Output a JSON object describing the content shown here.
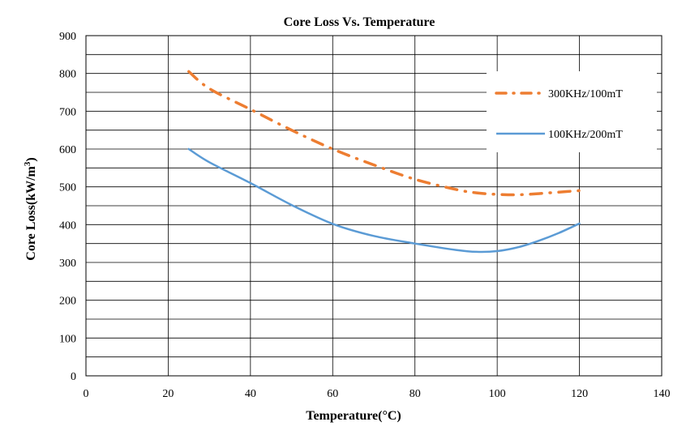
{
  "chart_data": {
    "type": "line",
    "title": "Core Loss Vs. Temperature",
    "xlabel": "Temperature(°C)",
    "ylabel": "Core Loss(kW/m",
    "ylabel_sup": "3",
    "ylabel_suffix": ")",
    "xlim": [
      0,
      140
    ],
    "ylim": [
      0,
      900
    ],
    "xticks": [
      0,
      20,
      40,
      60,
      80,
      100,
      120,
      140
    ],
    "yticks": [
      0,
      100,
      200,
      300,
      400,
      500,
      600,
      700,
      800,
      900
    ],
    "grid": true,
    "legend_position": "top-right",
    "series": [
      {
        "name": "300KHz/100mT",
        "color": "#ED7D31",
        "style": "dash-dot",
        "x": [
          25,
          30,
          40,
          50,
          60,
          70,
          80,
          90,
          95,
          100,
          105,
          110,
          115,
          120
        ],
        "y": [
          805,
          760,
          705,
          650,
          600,
          558,
          520,
          493,
          484,
          480,
          479,
          482,
          486,
          490
        ]
      },
      {
        "name": "100KHz/200mT",
        "color": "#5B9BD5",
        "style": "solid",
        "x": [
          25,
          30,
          40,
          50,
          60,
          70,
          80,
          90,
          95,
          100,
          105,
          110,
          115,
          120
        ],
        "y": [
          600,
          565,
          510,
          452,
          402,
          370,
          350,
          333,
          328,
          330,
          340,
          357,
          378,
          403
        ]
      }
    ]
  }
}
